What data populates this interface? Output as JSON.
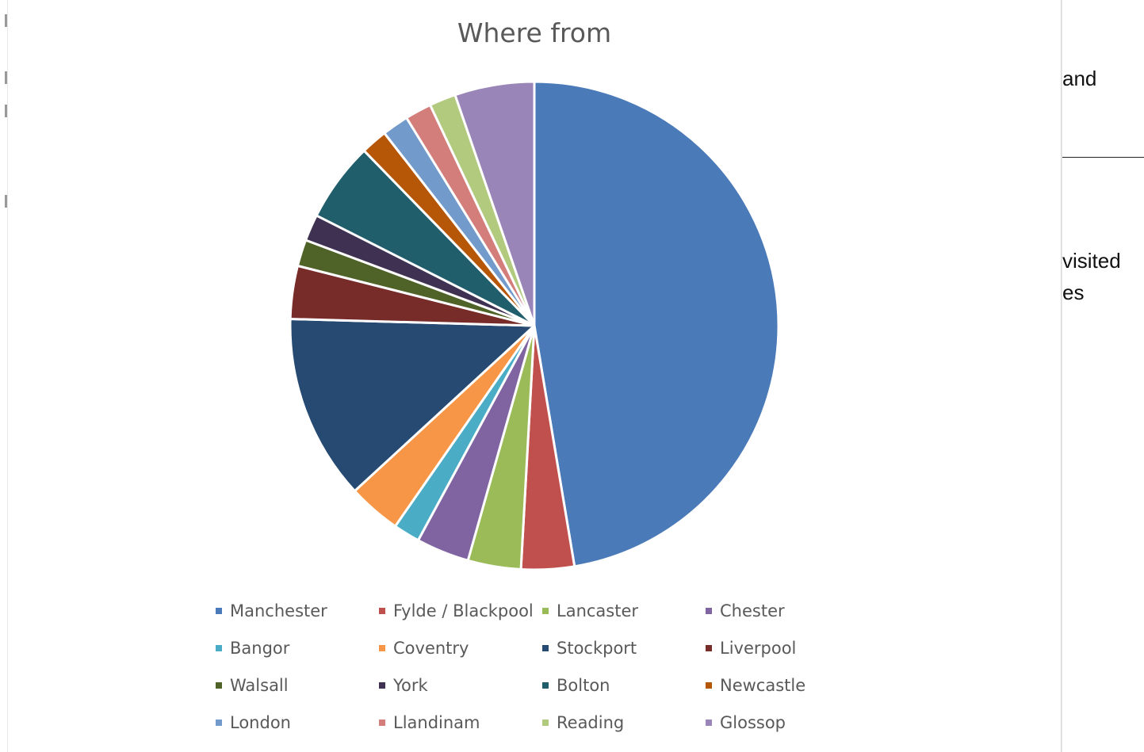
{
  "right_fragments": {
    "line1": "and",
    "line2": "visited",
    "line3": "es"
  },
  "chart_data": {
    "type": "pie",
    "title": "Where from",
    "legend_position": "bottom",
    "categories": [
      "Manchester",
      "Fylde / Blackpool",
      "Lancaster",
      "Chester",
      "Bangor",
      "Coventry",
      "Stockport",
      "Liverpool",
      "Walsall",
      "York",
      "Bolton",
      "Newcastle",
      "London",
      "Llandinam",
      "Reading",
      "Glossop"
    ],
    "values": [
      27,
      2,
      2,
      2,
      1,
      2,
      7,
      2,
      1,
      1,
      3,
      1,
      1,
      1,
      1,
      3
    ],
    "colors": [
      "#4a7ab8",
      "#c0504d",
      "#9bbb59",
      "#8064a2",
      "#4bacc6",
      "#f79646",
      "#264a72",
      "#772c2a",
      "#4f6228",
      "#3f3151",
      "#215e6c",
      "#b65708",
      "#729aca",
      "#d37e7b",
      "#b2ca7e",
      "#9985b7"
    ]
  }
}
